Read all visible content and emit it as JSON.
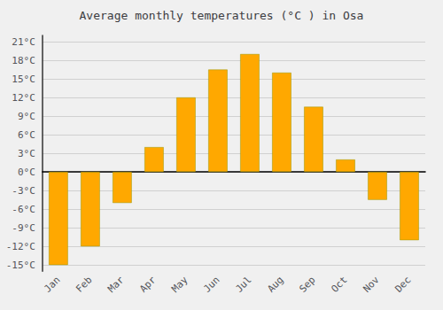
{
  "chart_data": {
    "type": "bar",
    "title": "Average monthly temperatures (°C ) in Osa",
    "categories": [
      "Jan",
      "Feb",
      "Mar",
      "Apr",
      "May",
      "Jun",
      "Jul",
      "Aug",
      "Sep",
      "Oct",
      "Nov",
      "Dec"
    ],
    "values": [
      -15,
      -12,
      -5,
      4,
      12,
      16.5,
      19,
      16,
      10.5,
      2,
      -4.5,
      -11
    ],
    "color": "#FFA800",
    "ylim": [
      -16,
      22
    ],
    "yticks": [
      {
        "value": -15,
        "label": "-15°C"
      },
      {
        "value": -12,
        "label": "-12°C"
      },
      {
        "value": -9,
        "label": "-9°C"
      },
      {
        "value": -6,
        "label": "-6°C"
      },
      {
        "value": -3,
        "label": "-3°C"
      },
      {
        "value": 0,
        "label": "0°C"
      },
      {
        "value": 3,
        "label": "3°C"
      },
      {
        "value": 6,
        "label": "6°C"
      },
      {
        "value": 9,
        "label": "9°C"
      },
      {
        "value": 12,
        "label": "12°C"
      },
      {
        "value": 15,
        "label": "15°C"
      },
      {
        "value": 18,
        "label": "18°C"
      },
      {
        "value": 21,
        "label": "21°C"
      }
    ],
    "grid": true
  }
}
